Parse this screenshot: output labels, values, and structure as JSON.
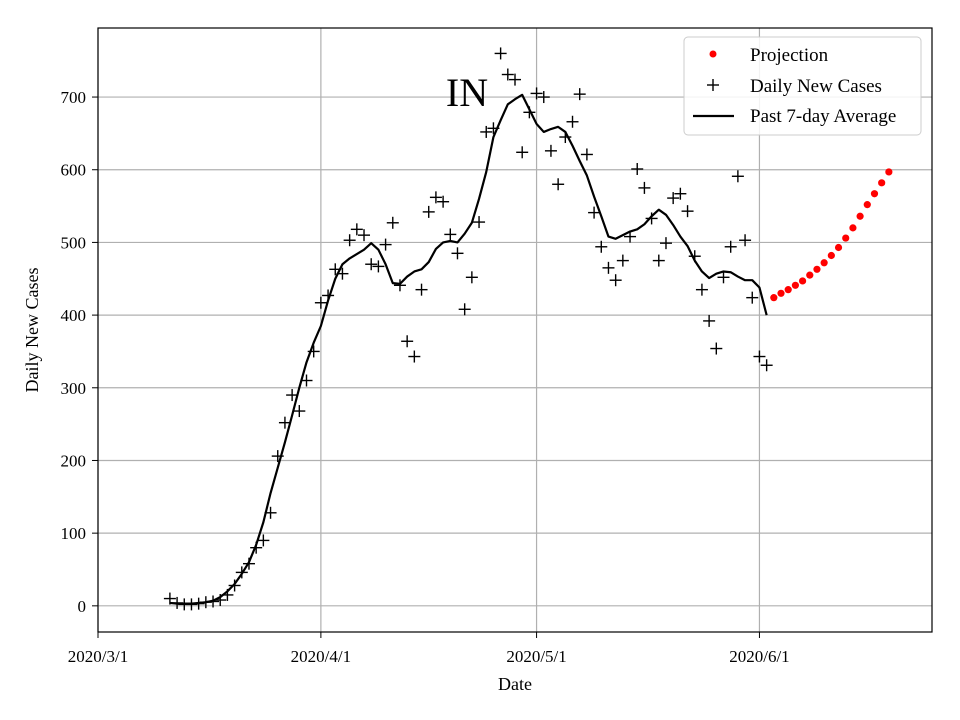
{
  "chart_data": {
    "type": "line",
    "title": "",
    "annotation": "IN",
    "xlabel": "Date",
    "ylabel": "Daily New Cases",
    "x_ticks": [
      "2020/3/1",
      "2020/4/1",
      "2020/5/1",
      "2020/6/1"
    ],
    "y_ticks": [
      0,
      100,
      200,
      300,
      400,
      500,
      600,
      700
    ],
    "xlim": [
      "2020-03-01",
      "2020-06-25"
    ],
    "ylim": [
      -36,
      795
    ],
    "grid": true,
    "legend_position": "top-right",
    "colors": {
      "projection": "#ff0000",
      "daily": "#000000",
      "average": "#000000"
    },
    "series": [
      {
        "name": "Projection",
        "style": "dots",
        "points": [
          [
            "2020-06-03",
            424
          ],
          [
            "2020-06-04",
            430
          ],
          [
            "2020-06-05",
            435
          ],
          [
            "2020-06-06",
            441
          ],
          [
            "2020-06-07",
            447
          ],
          [
            "2020-06-08",
            455
          ],
          [
            "2020-06-09",
            463
          ],
          [
            "2020-06-10",
            472
          ],
          [
            "2020-06-11",
            482
          ],
          [
            "2020-06-12",
            493
          ],
          [
            "2020-06-13",
            506
          ],
          [
            "2020-06-14",
            520
          ],
          [
            "2020-06-15",
            536
          ],
          [
            "2020-06-16",
            552
          ],
          [
            "2020-06-17",
            567
          ],
          [
            "2020-06-18",
            582
          ],
          [
            "2020-06-19",
            597
          ]
        ]
      },
      {
        "name": "Daily New Cases",
        "style": "plus",
        "points": [
          [
            "2020-03-11",
            10
          ],
          [
            "2020-03-12",
            4
          ],
          [
            "2020-03-13",
            2
          ],
          [
            "2020-03-14",
            2
          ],
          [
            "2020-03-15",
            3
          ],
          [
            "2020-03-16",
            5
          ],
          [
            "2020-03-17",
            6
          ],
          [
            "2020-03-18",
            8
          ],
          [
            "2020-03-19",
            15
          ],
          [
            "2020-03-20",
            28
          ],
          [
            "2020-03-21",
            46
          ],
          [
            "2020-03-22",
            58
          ],
          [
            "2020-03-23",
            80
          ],
          [
            "2020-03-24",
            90
          ],
          [
            "2020-03-25",
            128
          ],
          [
            "2020-03-26",
            206
          ],
          [
            "2020-03-27",
            252
          ],
          [
            "2020-03-28",
            290
          ],
          [
            "2020-03-29",
            268
          ],
          [
            "2020-03-30",
            310
          ],
          [
            "2020-03-31",
            350
          ],
          [
            "2020-04-01",
            417
          ],
          [
            "2020-04-02",
            427
          ],
          [
            "2020-04-03",
            463
          ],
          [
            "2020-04-04",
            457
          ],
          [
            "2020-04-05",
            503
          ],
          [
            "2020-04-06",
            518
          ],
          [
            "2020-04-07",
            510
          ],
          [
            "2020-04-08",
            470
          ],
          [
            "2020-04-09",
            467
          ],
          [
            "2020-04-10",
            497
          ],
          [
            "2020-04-11",
            527
          ],
          [
            "2020-04-12",
            441
          ],
          [
            "2020-04-13",
            364
          ],
          [
            "2020-04-14",
            343
          ],
          [
            "2020-04-15",
            435
          ],
          [
            "2020-04-16",
            542
          ],
          [
            "2020-04-17",
            562
          ],
          [
            "2020-04-18",
            556
          ],
          [
            "2020-04-19",
            511
          ],
          [
            "2020-04-20",
            485
          ],
          [
            "2020-04-21",
            408
          ],
          [
            "2020-04-22",
            452
          ],
          [
            "2020-04-23",
            528
          ],
          [
            "2020-04-24",
            652
          ],
          [
            "2020-04-25",
            657
          ],
          [
            "2020-04-26",
            760
          ],
          [
            "2020-04-27",
            731
          ],
          [
            "2020-04-28",
            724
          ],
          [
            "2020-04-29",
            624
          ],
          [
            "2020-04-30",
            679
          ],
          [
            "2020-05-01",
            705
          ],
          [
            "2020-05-02",
            700
          ],
          [
            "2020-05-03",
            626
          ],
          [
            "2020-05-04",
            580
          ],
          [
            "2020-05-05",
            645
          ],
          [
            "2020-05-06",
            666
          ],
          [
            "2020-05-07",
            704
          ],
          [
            "2020-05-08",
            621
          ],
          [
            "2020-05-09",
            541
          ],
          [
            "2020-05-10",
            494
          ],
          [
            "2020-05-11",
            465
          ],
          [
            "2020-05-12",
            448
          ],
          [
            "2020-05-13",
            475
          ],
          [
            "2020-05-14",
            508
          ],
          [
            "2020-05-15",
            601
          ],
          [
            "2020-05-16",
            575
          ],
          [
            "2020-05-17",
            533
          ],
          [
            "2020-05-18",
            475
          ],
          [
            "2020-05-19",
            499
          ],
          [
            "2020-05-20",
            561
          ],
          [
            "2020-05-21",
            567
          ],
          [
            "2020-05-22",
            543
          ],
          [
            "2020-05-23",
            481
          ],
          [
            "2020-05-24",
            435
          ],
          [
            "2020-05-25",
            392
          ],
          [
            "2020-05-26",
            354
          ],
          [
            "2020-05-27",
            452
          ],
          [
            "2020-05-28",
            494
          ],
          [
            "2020-05-29",
            591
          ],
          [
            "2020-05-30",
            503
          ],
          [
            "2020-05-31",
            424
          ],
          [
            "2020-06-01",
            343
          ],
          [
            "2020-06-02",
            331
          ]
        ]
      },
      {
        "name": "Past 7-day Average",
        "style": "line",
        "points": [
          [
            "2020-03-11",
            4
          ],
          [
            "2020-03-12",
            3
          ],
          [
            "2020-03-13",
            3
          ],
          [
            "2020-03-14",
            3
          ],
          [
            "2020-03-15",
            4
          ],
          [
            "2020-03-16",
            5
          ],
          [
            "2020-03-17",
            7
          ],
          [
            "2020-03-18",
            12
          ],
          [
            "2020-03-19",
            20
          ],
          [
            "2020-03-20",
            30
          ],
          [
            "2020-03-21",
            44
          ],
          [
            "2020-03-22",
            60
          ],
          [
            "2020-03-23",
            84
          ],
          [
            "2020-03-24",
            115
          ],
          [
            "2020-03-25",
            155
          ],
          [
            "2020-03-26",
            190
          ],
          [
            "2020-03-27",
            225
          ],
          [
            "2020-03-28",
            262
          ],
          [
            "2020-03-29",
            300
          ],
          [
            "2020-03-30",
            335
          ],
          [
            "2020-03-31",
            362
          ],
          [
            "2020-04-01",
            385
          ],
          [
            "2020-04-02",
            420
          ],
          [
            "2020-04-03",
            450
          ],
          [
            "2020-04-04",
            470
          ],
          [
            "2020-04-05",
            478
          ],
          [
            "2020-04-06",
            484
          ],
          [
            "2020-04-07",
            490
          ],
          [
            "2020-04-08",
            499
          ],
          [
            "2020-04-09",
            490
          ],
          [
            "2020-04-10",
            470
          ],
          [
            "2020-04-11",
            444
          ],
          [
            "2020-04-12",
            443
          ],
          [
            "2020-04-13",
            453
          ],
          [
            "2020-04-14",
            460
          ],
          [
            "2020-04-15",
            463
          ],
          [
            "2020-04-16",
            473
          ],
          [
            "2020-04-17",
            491
          ],
          [
            "2020-04-18",
            500
          ],
          [
            "2020-04-19",
            502
          ],
          [
            "2020-04-20",
            500
          ],
          [
            "2020-04-21",
            512
          ],
          [
            "2020-04-22",
            527
          ],
          [
            "2020-04-23",
            560
          ],
          [
            "2020-04-24",
            597
          ],
          [
            "2020-04-25",
            645
          ],
          [
            "2020-04-26",
            668
          ],
          [
            "2020-04-27",
            690
          ],
          [
            "2020-04-28",
            697
          ],
          [
            "2020-04-29",
            703
          ],
          [
            "2020-04-30",
            683
          ],
          [
            "2020-05-01",
            663
          ],
          [
            "2020-05-02",
            652
          ],
          [
            "2020-05-03",
            656
          ],
          [
            "2020-05-04",
            659
          ],
          [
            "2020-05-05",
            652
          ],
          [
            "2020-05-06",
            633
          ],
          [
            "2020-05-07",
            612
          ],
          [
            "2020-05-08",
            592
          ],
          [
            "2020-05-09",
            563
          ],
          [
            "2020-05-10",
            536
          ],
          [
            "2020-05-11",
            508
          ],
          [
            "2020-05-12",
            505
          ],
          [
            "2020-05-13",
            510
          ],
          [
            "2020-05-14",
            515
          ],
          [
            "2020-05-15",
            518
          ],
          [
            "2020-05-16",
            525
          ],
          [
            "2020-05-17",
            536
          ],
          [
            "2020-05-18",
            545
          ],
          [
            "2020-05-19",
            538
          ],
          [
            "2020-05-20",
            524
          ],
          [
            "2020-05-21",
            508
          ],
          [
            "2020-05-22",
            495
          ],
          [
            "2020-05-23",
            475
          ],
          [
            "2020-05-24",
            460
          ],
          [
            "2020-05-25",
            451
          ],
          [
            "2020-05-26",
            457
          ],
          [
            "2020-05-27",
            460
          ],
          [
            "2020-05-28",
            459
          ],
          [
            "2020-05-29",
            453
          ],
          [
            "2020-05-30",
            448
          ],
          [
            "2020-05-31",
            448
          ],
          [
            "2020-06-01",
            438
          ],
          [
            "2020-06-02",
            400
          ]
        ]
      }
    ]
  }
}
